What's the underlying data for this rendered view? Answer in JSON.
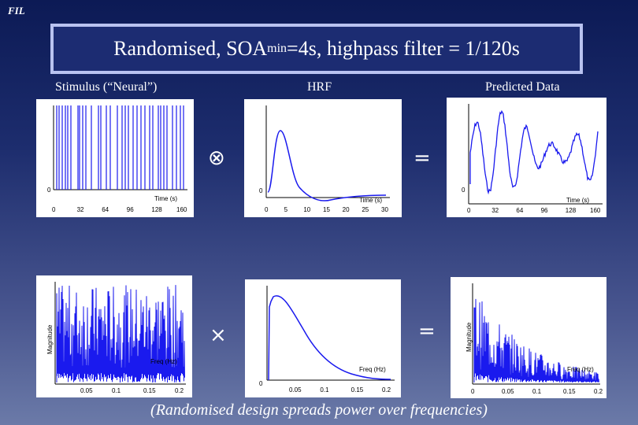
{
  "header": {
    "fil": "FIL"
  },
  "title": {
    "pre": "Randomised, SOA",
    "sub": "min",
    "post": "=4s, highpass filter = 1/120s"
  },
  "labels": {
    "stimulus": "Stimulus (“Neural”)",
    "hrf": "HRF",
    "predicted": "Predicted Data"
  },
  "operators": {
    "convolve": "⊗",
    "multiply": "×",
    "equals1": "=",
    "equals2": "="
  },
  "caption": "(Randomised design spreads power over frequencies)",
  "plots": {
    "stimulus": {
      "xlabel": "Time (s)",
      "zero": "0",
      "ticks": [
        "0",
        "32",
        "64",
        "96",
        "128",
        "160"
      ]
    },
    "hrf": {
      "xlabel": "Time (s)",
      "zero": "0",
      "ticks": [
        "0",
        "5",
        "10",
        "15",
        "20",
        "25",
        "30"
      ]
    },
    "predicted": {
      "xlabel": "Time (s)",
      "zero": "0",
      "ticks": [
        "0",
        "32",
        "64",
        "96",
        "128",
        "160"
      ]
    },
    "stimulus_spec": {
      "ylabel": "Magnitude",
      "ticks": [
        "0.05",
        "0.1",
        "0.15",
        "0.2"
      ],
      "note": "Freq (Hz)"
    },
    "hrf_spec": {
      "xlabel": "Freq (Hz)",
      "zero": "0",
      "ticks": [
        "0.05",
        "0.1",
        "0.15",
        "0.2"
      ]
    },
    "predicted_spec": {
      "ylabel": "Magnitude",
      "xlabel": "Freq (Hz)",
      "ticks": [
        "0",
        "0.05",
        "0.1",
        "0.15",
        "0.2"
      ]
    }
  },
  "colors": {
    "trace": "#1a1aee",
    "axis": "#000000"
  }
}
